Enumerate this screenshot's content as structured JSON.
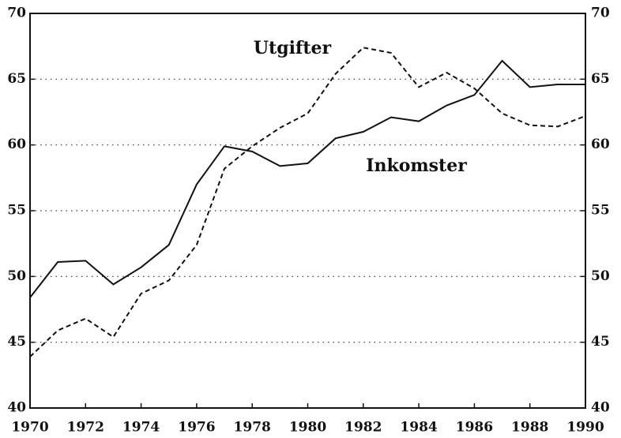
{
  "chart_data": {
    "type": "line",
    "x": [
      1970,
      1971,
      1972,
      1973,
      1974,
      1975,
      1976,
      1977,
      1978,
      1979,
      1980,
      1981,
      1982,
      1983,
      1984,
      1985,
      1986,
      1987,
      1988,
      1989,
      1990
    ],
    "series": [
      {
        "name": "Inkomster",
        "color": "#111111",
        "linestyle": "solid",
        "values": [
          48.4,
          51.1,
          51.2,
          49.4,
          50.7,
          52.4,
          57.0,
          59.9,
          59.5,
          58.4,
          58.6,
          60.5,
          61.0,
          62.1,
          61.8,
          63.0,
          63.8,
          66.4,
          64.4,
          64.6,
          64.6
        ]
      },
      {
        "name": "Utgifter",
        "color": "#111111",
        "linestyle": "dashed",
        "values": [
          43.9,
          45.9,
          46.8,
          45.4,
          48.7,
          49.7,
          52.4,
          58.2,
          59.9,
          61.3,
          62.4,
          65.4,
          67.4,
          67.0,
          64.4,
          65.5,
          64.3,
          62.4,
          61.5,
          61.4,
          62.2
        ]
      }
    ],
    "annotations": [
      {
        "text": "Utgifter"
      },
      {
        "text": "Inkomster"
      }
    ],
    "xlim": [
      1970,
      1990
    ],
    "xticks": [
      1970,
      1972,
      1974,
      1976,
      1978,
      1980,
      1982,
      1984,
      1986,
      1988,
      1990
    ],
    "ylim": [
      40,
      70
    ],
    "yticks": [
      40,
      45,
      50,
      55,
      60,
      65,
      70
    ],
    "y2lim": [
      40,
      70
    ],
    "y2ticks": [
      40,
      45,
      50,
      55,
      60,
      65,
      70
    ],
    "grid": true
  }
}
